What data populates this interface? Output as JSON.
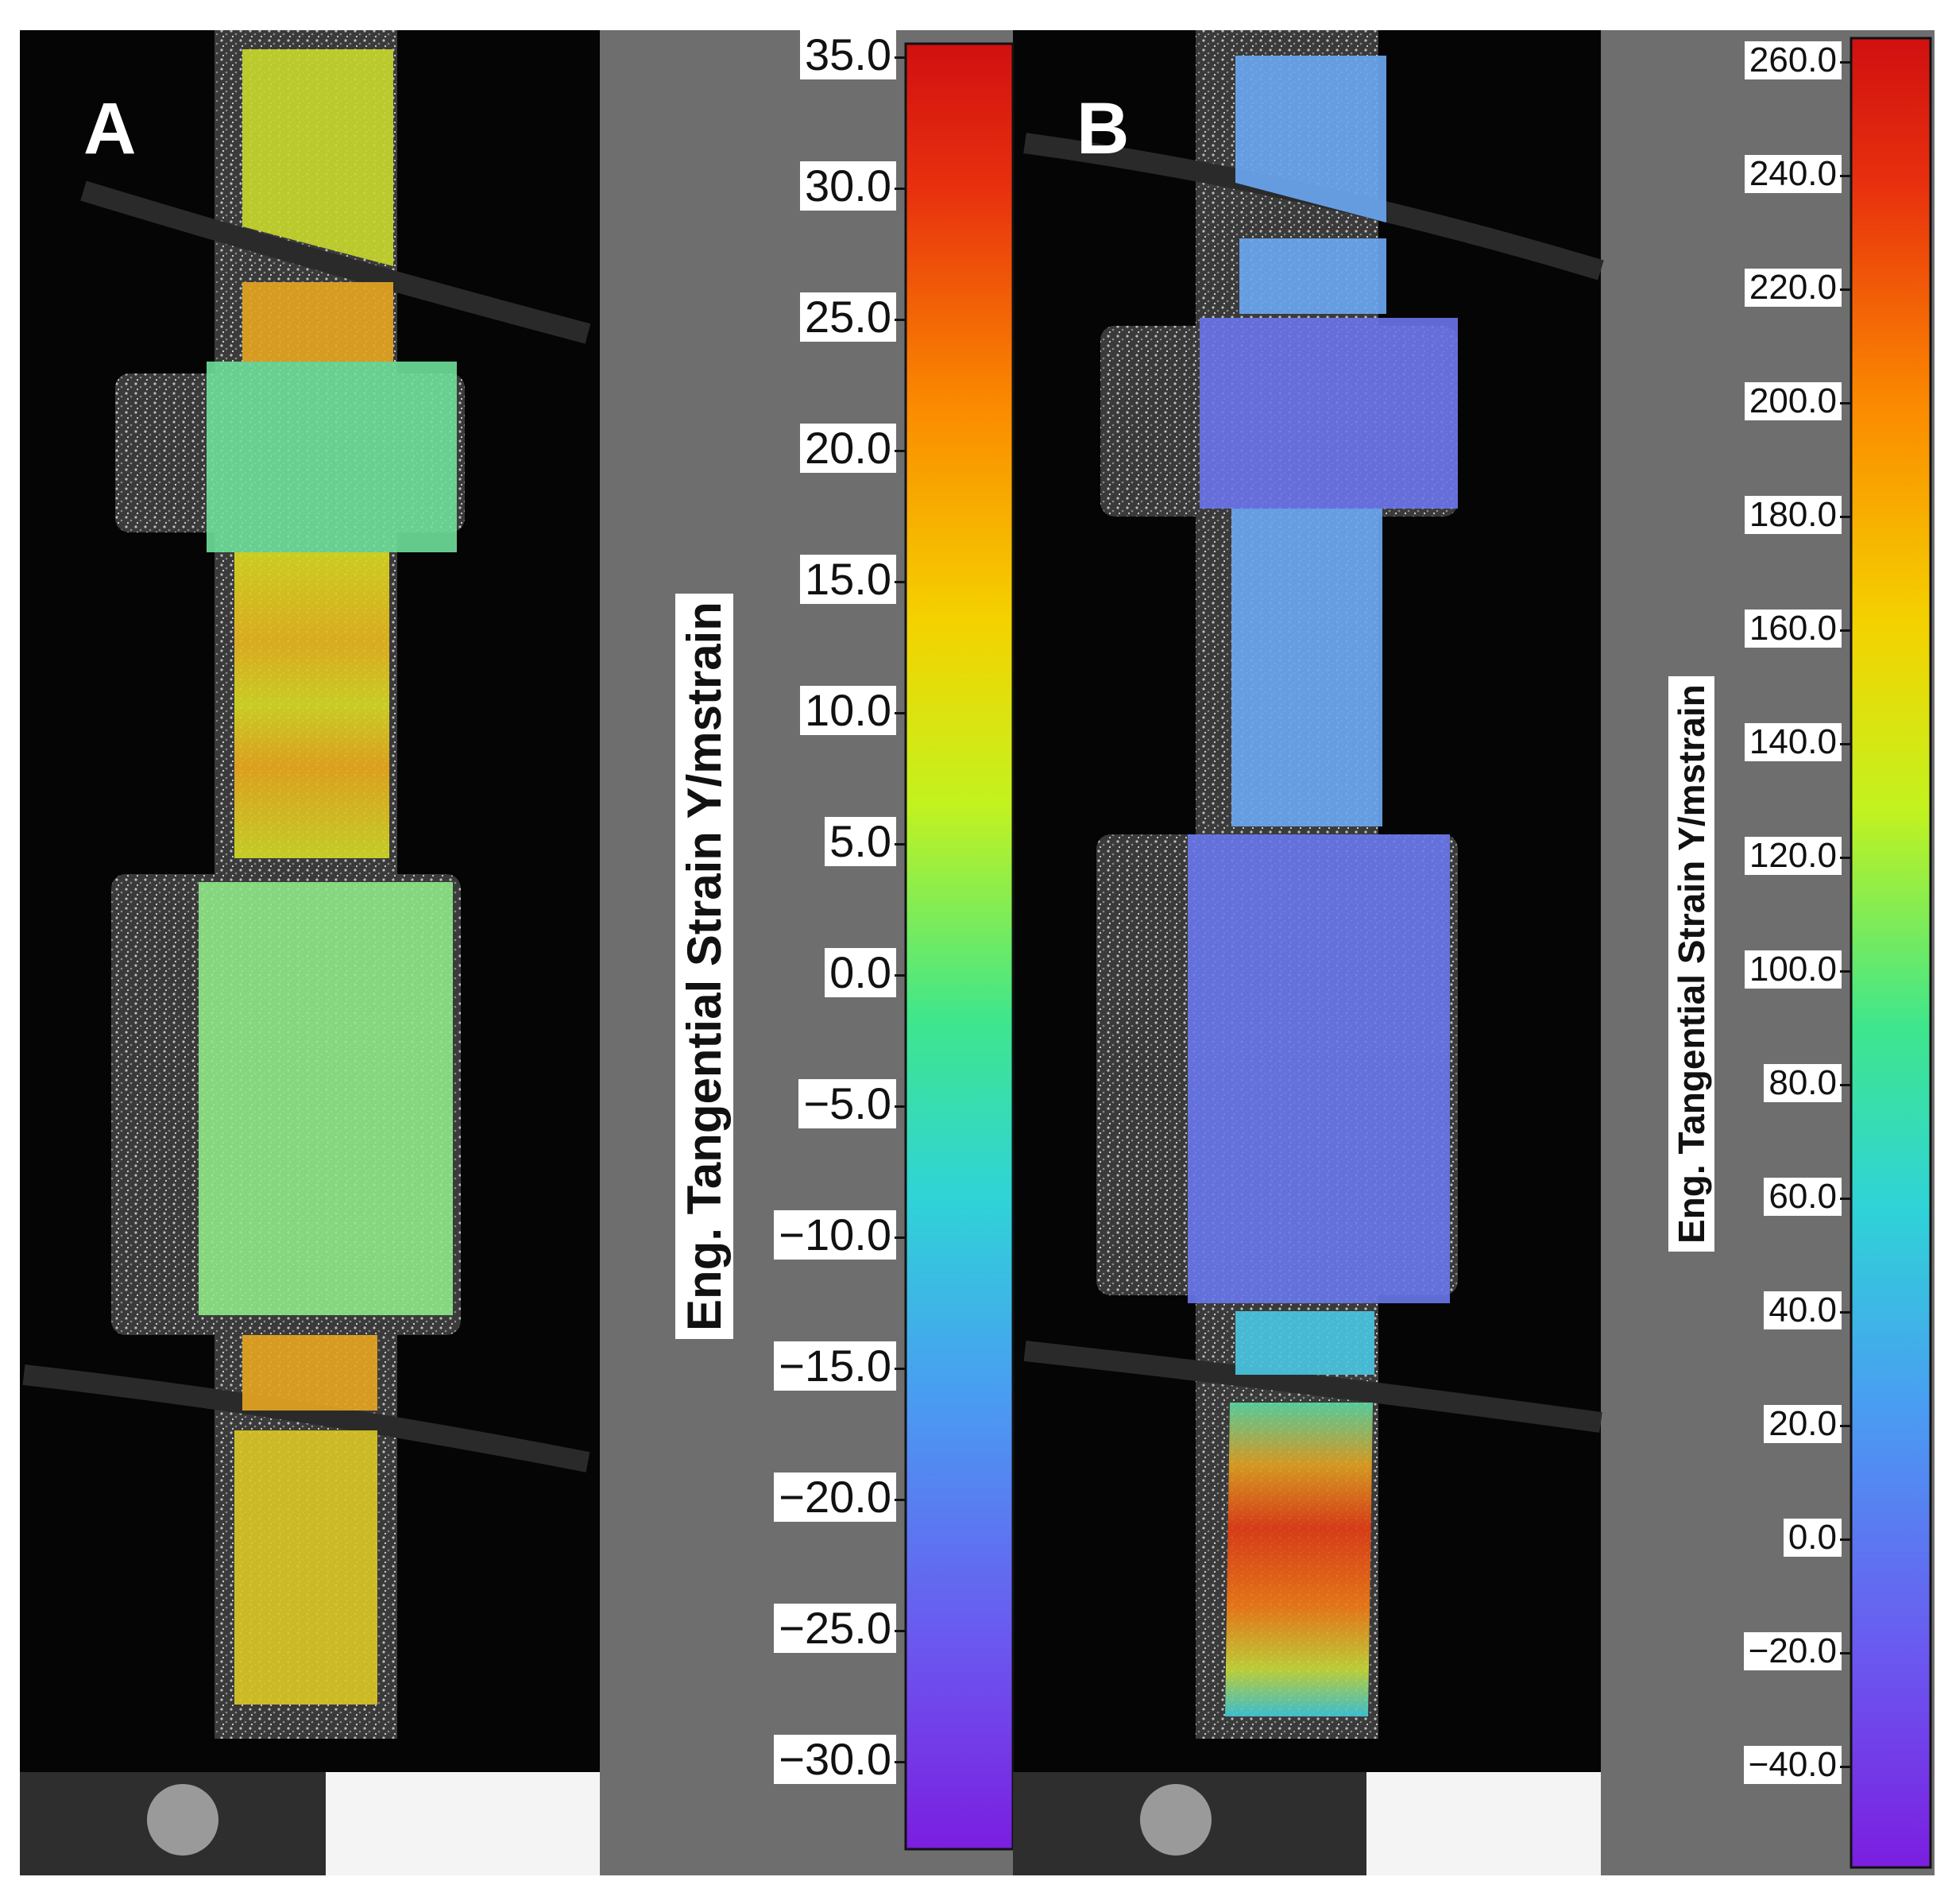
{
  "panels": [
    {
      "letter": "A",
      "colorbar": {
        "label": "Eng. Tangential Strain Y/mstrain",
        "ticks": [
          "35.0",
          "30.0",
          "25.0",
          "20.0",
          "15.0",
          "10.0",
          "5.0",
          "0.0",
          "−5.0",
          "−10.0",
          "−15.0",
          "−20.0",
          "−25.0",
          "−30.0"
        ],
        "range": [
          -33.5,
          35.5
        ]
      }
    },
    {
      "letter": "B",
      "colorbar": {
        "label": "Eng. Tangential Strain Y/mstrain",
        "ticks": [
          "260.0",
          "240.0",
          "220.0",
          "200.0",
          "180.0",
          "160.0",
          "140.0",
          "120.0",
          "100.0",
          "80.0",
          "60.0",
          "40.0",
          "20.0",
          "0.0",
          "−20.0",
          "−40.0"
        ],
        "range": [
          -49,
          265
        ]
      }
    }
  ],
  "colormap": [
    "#7b1ee0",
    "#6a5af0",
    "#4a9cf2",
    "#2fd3d8",
    "#3fe68c",
    "#c4f21e",
    "#f4d200",
    "#fb8a00",
    "#e8300e",
    "#d01010"
  ]
}
